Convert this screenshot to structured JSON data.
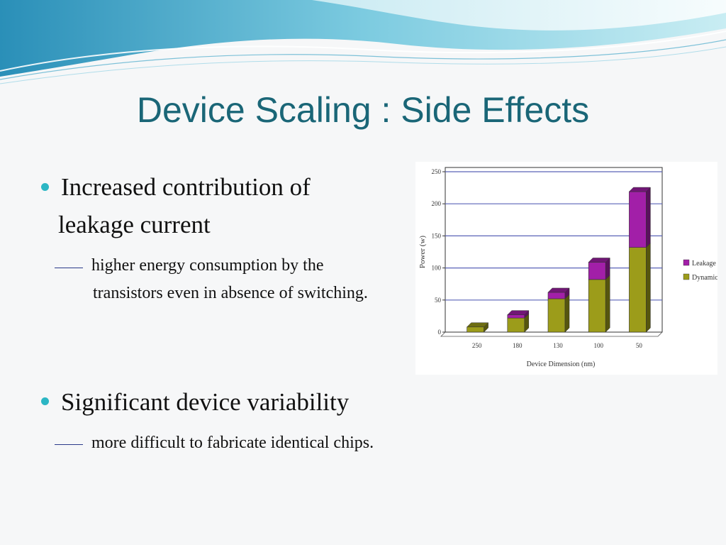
{
  "slide": {
    "title": "Device Scaling : Side Effects",
    "bullets": [
      {
        "line1": "Increased contribution of",
        "line2": "leakage current",
        "sub_line1": "higher energy consumption by the",
        "sub_line2": "transistors even in absence of switching."
      },
      {
        "line1": "Significant device variability",
        "sub_line1": "more difficult to fabricate identical chips."
      }
    ]
  },
  "colors": {
    "title": "#1a6677",
    "bullet": "#2cb6c4",
    "leakage": "#a21fa8",
    "dynamic": "#9c9c1a"
  },
  "chart_data": {
    "type": "bar",
    "stacked": true,
    "categories": [
      "250",
      "180",
      "130",
      "100",
      "50"
    ],
    "series": [
      {
        "name": "Dynamic",
        "values": [
          8,
          22,
          52,
          82,
          132
        ]
      },
      {
        "name": "Leakage",
        "values": [
          0,
          5,
          10,
          27,
          87
        ]
      }
    ],
    "xlabel": "Device Dimension (nm)",
    "ylabel": "Power (w)",
    "ylim": [
      0,
      250
    ],
    "yticks": [
      0,
      50,
      100,
      150,
      200,
      250
    ],
    "legend_position": "right",
    "legend": [
      "Leakage",
      "Dynamic"
    ]
  }
}
